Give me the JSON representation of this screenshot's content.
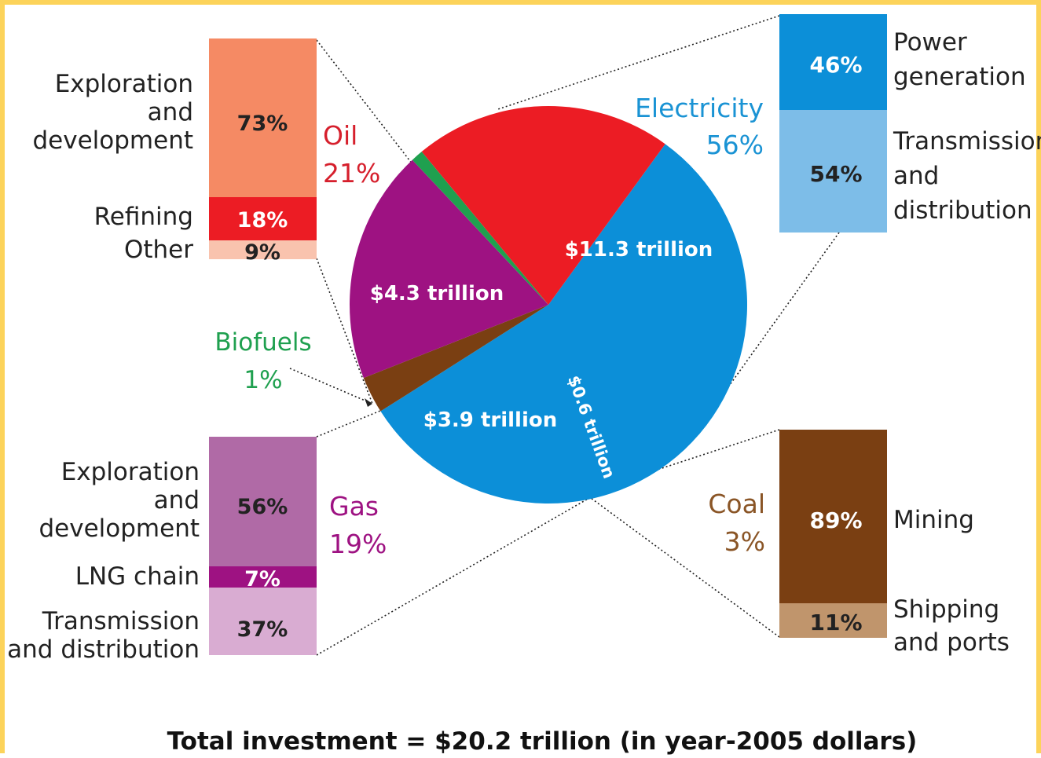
{
  "colors": {
    "frame": "#fcd35a",
    "electricity": "#0c8fd8",
    "electricity_light": "#7dbde8",
    "oil": "#ec1c24",
    "oil_light": "#f58a64",
    "oil_pale": "#f9c3ae",
    "gas": "#9e1282",
    "gas_mid": "#b06aa6",
    "gas_light": "#d9acd2",
    "coal": "#7a3f12",
    "coal_light": "#c0956c",
    "biofuels": "#1fa04f"
  },
  "chart_data": {
    "type": "pie",
    "title": "Total investment = $20.2 trillion (in year-2005 dollars)",
    "total": "$20.2 trillion",
    "slices": [
      {
        "name": "Electricity",
        "percent": 56,
        "value_label": "$11.3 trillion",
        "percent_label": "56%",
        "color": "#0c8fd8"
      },
      {
        "name": "Coal",
        "percent": 3,
        "value_label": "$0.6 trillion",
        "percent_label": "3%",
        "color": "#7a3f12"
      },
      {
        "name": "Gas",
        "percent": 19,
        "value_label": "$3.9 trillion",
        "percent_label": "19%",
        "color": "#9e1282"
      },
      {
        "name": "Biofuels",
        "percent": 1,
        "value_label": "",
        "percent_label": "1%",
        "color": "#1fa04f"
      },
      {
        "name": "Oil",
        "percent": 21,
        "value_label": "$4.3 trillion",
        "percent_label": "21%",
        "color": "#ec1c24"
      }
    ],
    "breakdowns": {
      "oil": [
        {
          "label": "Exploration and development",
          "percent": 73,
          "percent_label": "73%"
        },
        {
          "label": "Refining",
          "percent": 18,
          "percent_label": "18%"
        },
        {
          "label": "Other",
          "percent": 9,
          "percent_label": "9%"
        }
      ],
      "electricity": [
        {
          "label": "Power generation",
          "percent": 46,
          "percent_label": "46%"
        },
        {
          "label": "Transmission and distribution",
          "percent": 54,
          "percent_label": "54%"
        }
      ],
      "gas": [
        {
          "label": "Exploration and development",
          "percent": 56,
          "percent_label": "56%"
        },
        {
          "label": "LNG chain",
          "percent": 7,
          "percent_label": "7%"
        },
        {
          "label": "Transmission and distribution",
          "percent": 37,
          "percent_label": "37%"
        }
      ],
      "coal": [
        {
          "label": "Mining",
          "percent": 89,
          "percent_label": "89%"
        },
        {
          "label": "Shipping and ports",
          "percent": 11,
          "percent_label": "11%"
        }
      ]
    }
  },
  "text": {
    "oil_name": "Oil",
    "oil_pct": "21%",
    "elec_name": "Electricity",
    "elec_pct": "56%",
    "gas_name": "Gas",
    "gas_pct": "19%",
    "coal_name": "Coal",
    "coal_pct": "3%",
    "bio_name": "Biofuels",
    "bio_pct": "1%",
    "oil_ed": [
      "Exploration",
      "and",
      "development"
    ],
    "oil_ref": "Refining",
    "oil_other": "Other",
    "elec_pg": [
      "Power",
      "generation"
    ],
    "elec_td": [
      "Transmission",
      "and",
      "distribution"
    ],
    "gas_ed": [
      "Exploration",
      "and",
      "development"
    ],
    "gas_lng": "LNG chain",
    "gas_td": [
      "Transmission",
      "and distribution"
    ],
    "coal_mining": "Mining",
    "coal_ship": [
      "Shipping",
      "and ports"
    ]
  }
}
